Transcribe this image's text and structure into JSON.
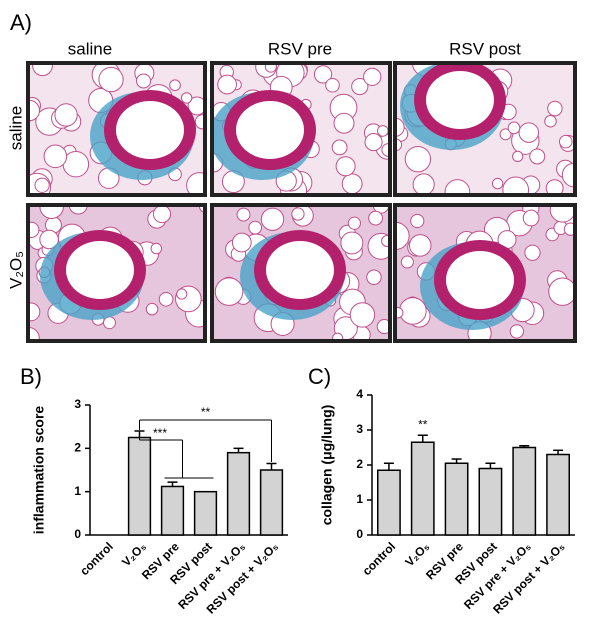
{
  "panel_a": {
    "label": "A)",
    "columns": [
      "saline",
      "RSV pre",
      "RSV post"
    ],
    "rows": [
      "saline",
      "V₂O₅"
    ]
  },
  "chart_data": [
    {
      "type": "bar",
      "panel_label": "B)",
      "y_label": "inflammation score",
      "categories": [
        "control",
        "V₂O₅",
        "RSV pre",
        "RSV post",
        "RSV pre + V₂O₅",
        "RSV post + V₂O₅"
      ],
      "values": [
        0,
        2.25,
        1.12,
        1.0,
        1.9,
        1.5
      ],
      "errors": [
        0,
        0.15,
        0.1,
        0,
        0.1,
        0.15
      ],
      "color": "#d3d3d3",
      "ylim": [
        0,
        3
      ],
      "yticks": [
        0,
        1,
        2,
        3
      ],
      "annotations": [
        "***",
        "**"
      ]
    },
    {
      "type": "bar",
      "panel_label": "C)",
      "y_label": "collagen (μg/lung)",
      "categories": [
        "control",
        "V₂O₅",
        "RSV pre",
        "RSV post",
        "RSV pre + V₂O₅",
        "RSV post + V₂O₅"
      ],
      "values": [
        1.85,
        2.65,
        2.05,
        1.9,
        2.5,
        2.3
      ],
      "errors": [
        0.2,
        0.2,
        0.12,
        0.15,
        0.05,
        0.12
      ],
      "color": "#d3d3d3",
      "ylim": [
        0,
        4
      ],
      "yticks": [
        0,
        1,
        2,
        3,
        4
      ],
      "annotations": [
        "**"
      ]
    }
  ]
}
